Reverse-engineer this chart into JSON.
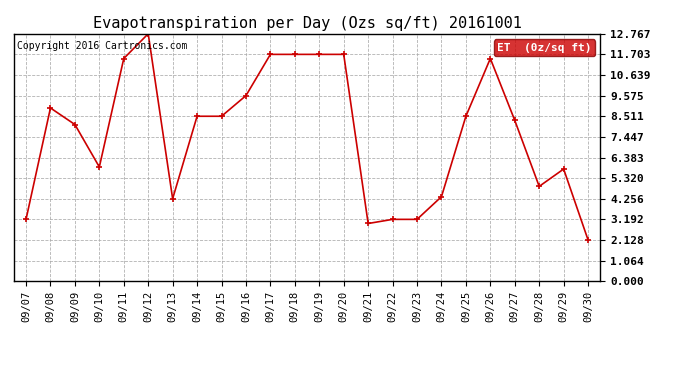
{
  "title": "Evapotranspiration per Day (Ozs sq/ft) 20161001",
  "copyright": "Copyright 2016 Cartronics.com",
  "legend_label": "ET  (0z/sq ft)",
  "x_labels": [
    "09/07",
    "09/08",
    "09/09",
    "09/10",
    "09/11",
    "09/12",
    "09/13",
    "09/14",
    "09/15",
    "09/16",
    "09/17",
    "09/18",
    "09/19",
    "09/20",
    "09/21",
    "09/22",
    "09/23",
    "09/24",
    "09/25",
    "09/26",
    "09/27",
    "09/28",
    "09/29",
    "09/30"
  ],
  "y_values": [
    3.192,
    8.938,
    8.085,
    5.894,
    11.49,
    12.767,
    4.256,
    8.511,
    8.511,
    9.575,
    11.703,
    11.703,
    11.703,
    11.703,
    2.979,
    3.192,
    3.192,
    4.362,
    8.511,
    11.49,
    8.298,
    4.894,
    5.788,
    2.128
  ],
  "y_ticks": [
    0.0,
    1.064,
    2.128,
    3.192,
    4.256,
    5.32,
    6.383,
    7.447,
    8.511,
    9.575,
    10.639,
    11.703,
    12.767
  ],
  "y_min": 0.0,
  "y_max": 12.767,
  "line_color": "#cc0000",
  "marker": "+",
  "marker_size": 5,
  "line_width": 1.2,
  "bg_color": "#ffffff",
  "plot_bg_color": "#ffffff",
  "grid_color": "#aaaaaa",
  "title_fontsize": 11,
  "copyright_fontsize": 7,
  "tick_fontsize": 7.5,
  "ytick_fontsize": 8,
  "legend_bg": "#cc0000",
  "legend_fg": "#ffffff"
}
